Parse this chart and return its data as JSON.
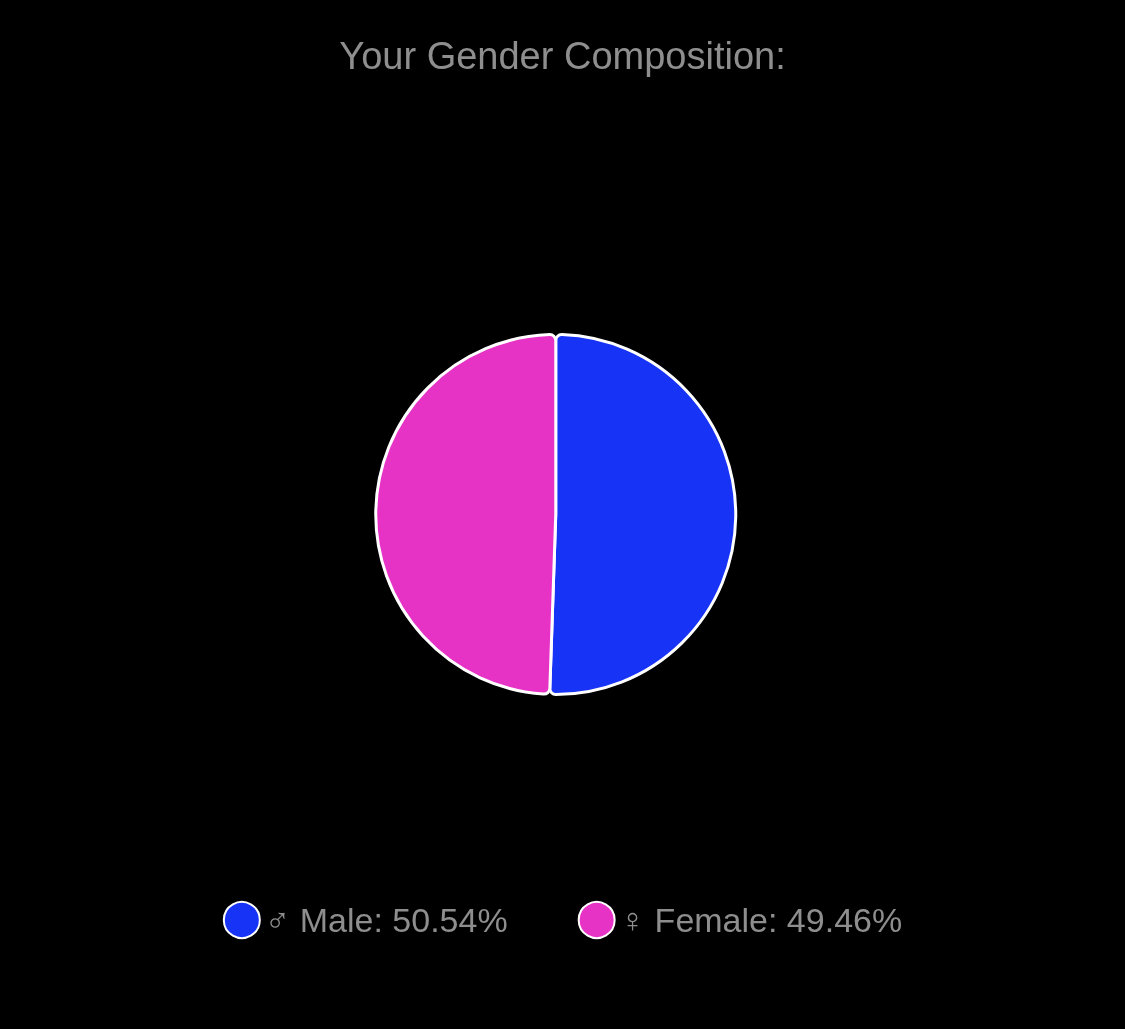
{
  "chart_data": {
    "type": "pie",
    "title": "Your Gender Composition:",
    "categories": [
      "♂ Male: 50.54%",
      "♀ Female: 49.46%"
    ],
    "values": [
      50.54,
      49.46
    ],
    "colors": [
      "#1733f5",
      "#e633c6"
    ],
    "legend": "bottom"
  }
}
